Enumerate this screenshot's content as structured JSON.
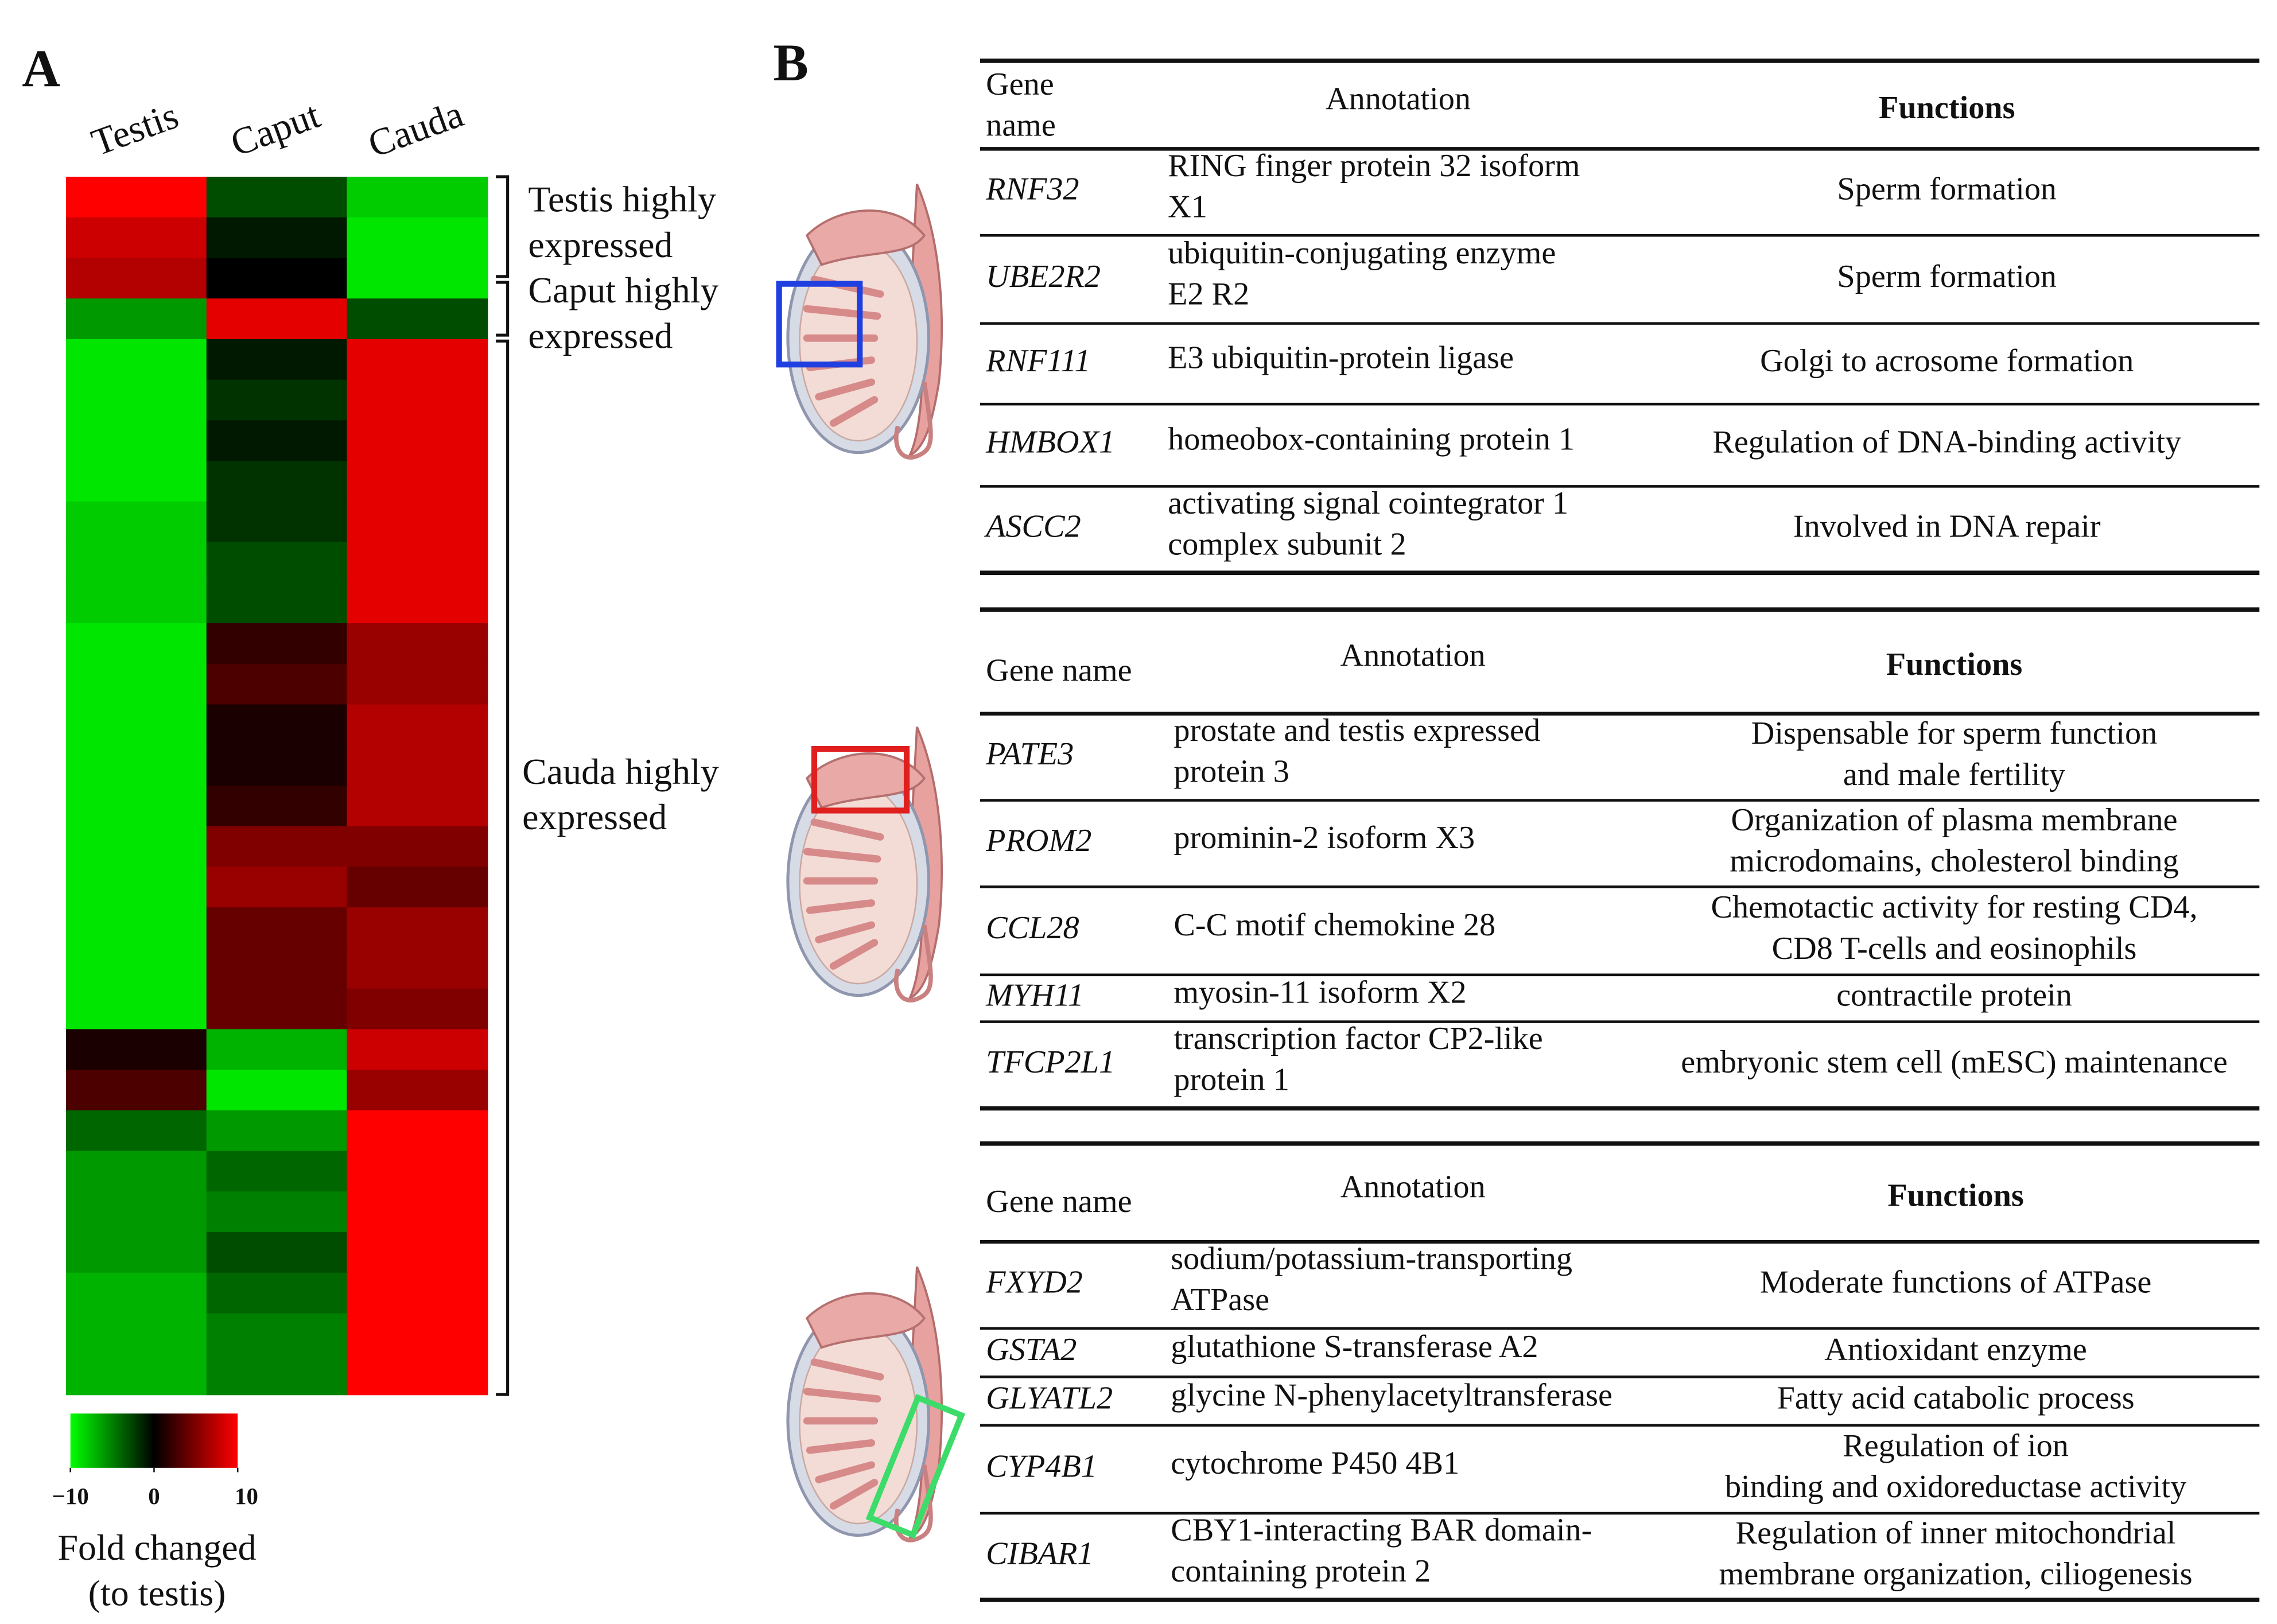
{
  "panels": {
    "a": "A",
    "b": "B"
  },
  "heatmap": {
    "columns": [
      "Testis",
      "Caput",
      "Cauda"
    ],
    "rows": [
      [
        10,
        -3,
        -8
      ],
      [
        8,
        -1,
        -9
      ],
      [
        7,
        0,
        -9
      ],
      [
        -6,
        9,
        -3
      ],
      [
        -9,
        -1,
        9
      ],
      [
        -9,
        -2,
        9
      ],
      [
        -9,
        -1,
        9
      ],
      [
        -9,
        -2,
        9
      ],
      [
        -8,
        -2,
        9
      ],
      [
        -8,
        -3,
        9
      ],
      [
        -8,
        -3,
        9
      ],
      [
        -9,
        2,
        6
      ],
      [
        -9,
        3,
        6
      ],
      [
        -9,
        1,
        7
      ],
      [
        -9,
        1,
        7
      ],
      [
        -9,
        2,
        7
      ],
      [
        -9,
        5,
        5
      ],
      [
        -9,
        6,
        4
      ],
      [
        -9,
        4,
        6
      ],
      [
        -9,
        4,
        6
      ],
      [
        -9,
        4,
        5
      ],
      [
        1,
        -7,
        8
      ],
      [
        3,
        -9,
        6
      ],
      [
        -4,
        -6,
        10
      ],
      [
        -6,
        -4,
        10
      ],
      [
        -6,
        -5,
        10
      ],
      [
        -6,
        -3,
        10
      ],
      [
        -7,
        -4,
        10
      ],
      [
        -7,
        -5,
        10
      ],
      [
        -7,
        -5,
        10
      ]
    ],
    "groups": [
      [
        "Testis highly",
        "expressed"
      ],
      [
        "Caput highly",
        "expressed"
      ],
      [
        "Cauda highly",
        "expressed"
      ]
    ],
    "colorbar": {
      "min": -10,
      "max": 10,
      "ticks": [
        {
          "value": -10,
          "label": "−10"
        },
        0,
        10
      ],
      "caption": [
        "Fold changed",
        "(to testis)"
      ]
    }
  },
  "tables": [
    {
      "header": [
        [
          "Gene",
          "name"
        ],
        [
          "Annotation"
        ],
        [
          "Functions"
        ]
      ],
      "rows": [
        [
          [
            "RNF32"
          ],
          [
            "RING finger protein 32 isoform",
            "X1"
          ],
          [
            "Sperm formation"
          ]
        ],
        [
          [
            "UBE2R2"
          ],
          [
            "ubiquitin-conjugating enzyme",
            "E2 R2"
          ],
          [
            "Sperm formation"
          ]
        ],
        [
          [
            "RNF111"
          ],
          [
            "E3 ubiquitin-protein ligase"
          ],
          [
            "Golgi to acrosome formation"
          ]
        ],
        [
          [
            "HMBOX1"
          ],
          [
            "homeobox-containing protein 1"
          ],
          [
            "Regulation of DNA-binding activity"
          ]
        ],
        [
          [
            "ASCC2"
          ],
          [
            "activating signal cointegrator 1",
            "complex subunit 2"
          ],
          [
            "Involved in DNA  repair"
          ]
        ]
      ]
    },
    {
      "header": [
        [
          "Gene name"
        ],
        [
          "Annotation"
        ],
        [
          "Functions"
        ]
      ],
      "rows": [
        [
          [
            "PATE3"
          ],
          [
            "prostate and testis expressed",
            "protein 3"
          ],
          [
            "Dispensable for sperm function",
            "and male fertility"
          ]
        ],
        [
          [
            "PROM2"
          ],
          [
            "prominin-2 isoform X3"
          ],
          [
            "Organization of plasma membrane",
            "microdomains, cholesterol binding"
          ]
        ],
        [
          [
            "CCL28"
          ],
          [
            "C-C motif chemokine 28"
          ],
          [
            "Chemotactic activity for resting CD4,",
            "CD8  T-cells and eosinophils"
          ]
        ],
        [
          [
            "MYH11"
          ],
          [
            "myosin-11 isoform X2"
          ],
          [
            "contractile protein"
          ]
        ],
        [
          [
            "TFCP2L1"
          ],
          [
            "transcription factor CP2-like",
            "protein 1"
          ],
          [
            "embryonic stem cell (mESC) maintenance"
          ]
        ]
      ]
    },
    {
      "header": [
        [
          "Gene name"
        ],
        [
          "Annotation"
        ],
        [
          "Functions"
        ]
      ],
      "rows": [
        [
          [
            "FXYD2"
          ],
          [
            "sodium/potassium-transporting",
            "ATPase"
          ],
          [
            "Moderate functions of ATPase"
          ]
        ],
        [
          [
            "GSTA2"
          ],
          [
            "glutathione S-transferase A2"
          ],
          [
            "Antioxidant enzyme"
          ]
        ],
        [
          [
            "GLYATL2"
          ],
          [
            "glycine N-phenylacetyltransferase"
          ],
          [
            "Fatty acid catabolic process"
          ]
        ],
        [
          [
            "CYP4B1"
          ],
          [
            "cytochrome P450 4B1"
          ],
          [
            "Regulation of ion",
            "binding and oxidoreductase activity"
          ]
        ],
        [
          [
            "CIBAR1"
          ],
          [
            "CBY1-interacting BAR domain-",
            "containing protein 2"
          ],
          [
            "Regulation of inner mitochondrial",
            "membrane organization, ciliogenesis"
          ]
        ]
      ]
    }
  ]
}
